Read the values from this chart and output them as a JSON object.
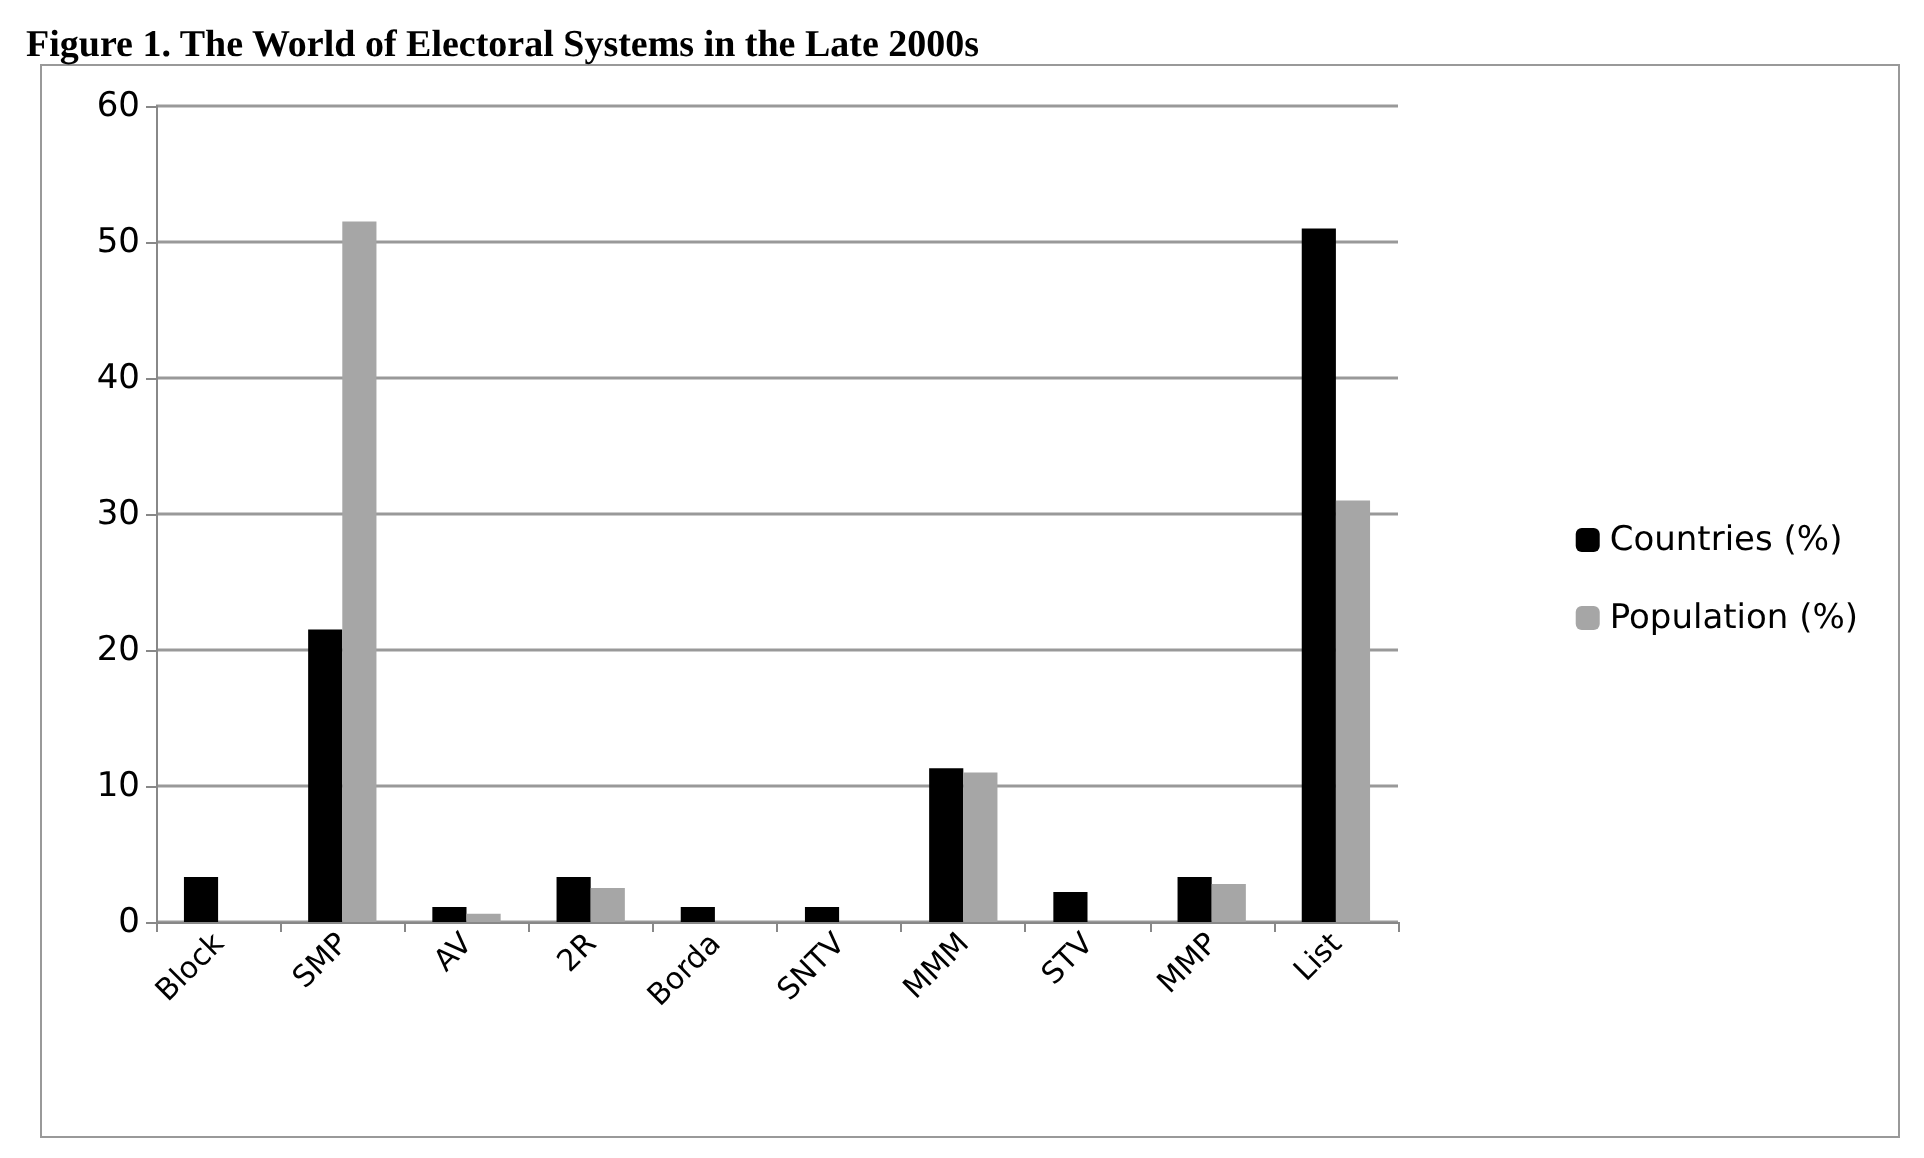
{
  "chart_data": {
    "type": "bar",
    "title": "Figure 1. The World of Electoral Systems in the Late 2000s",
    "categories": [
      "Block",
      "SMP",
      "AV",
      "2R",
      "Borda",
      "SNTV",
      "MMM",
      "STV",
      "MMP",
      "List"
    ],
    "series": [
      {
        "name": "Countries (%)",
        "color": "#000000",
        "values": [
          3.3,
          21.5,
          1.1,
          3.3,
          1.1,
          1.1,
          11.3,
          2.2,
          3.3,
          51
        ]
      },
      {
        "name": "Population (%)",
        "color": "#a6a6a6",
        "values": [
          0,
          51.5,
          0.6,
          2.5,
          0,
          0,
          11,
          0,
          2.8,
          31
        ]
      }
    ],
    "ylim": [
      0,
      60
    ],
    "yticks": [
      0,
      10,
      20,
      30,
      40,
      50,
      60
    ],
    "grid": "y",
    "legend": "right"
  }
}
